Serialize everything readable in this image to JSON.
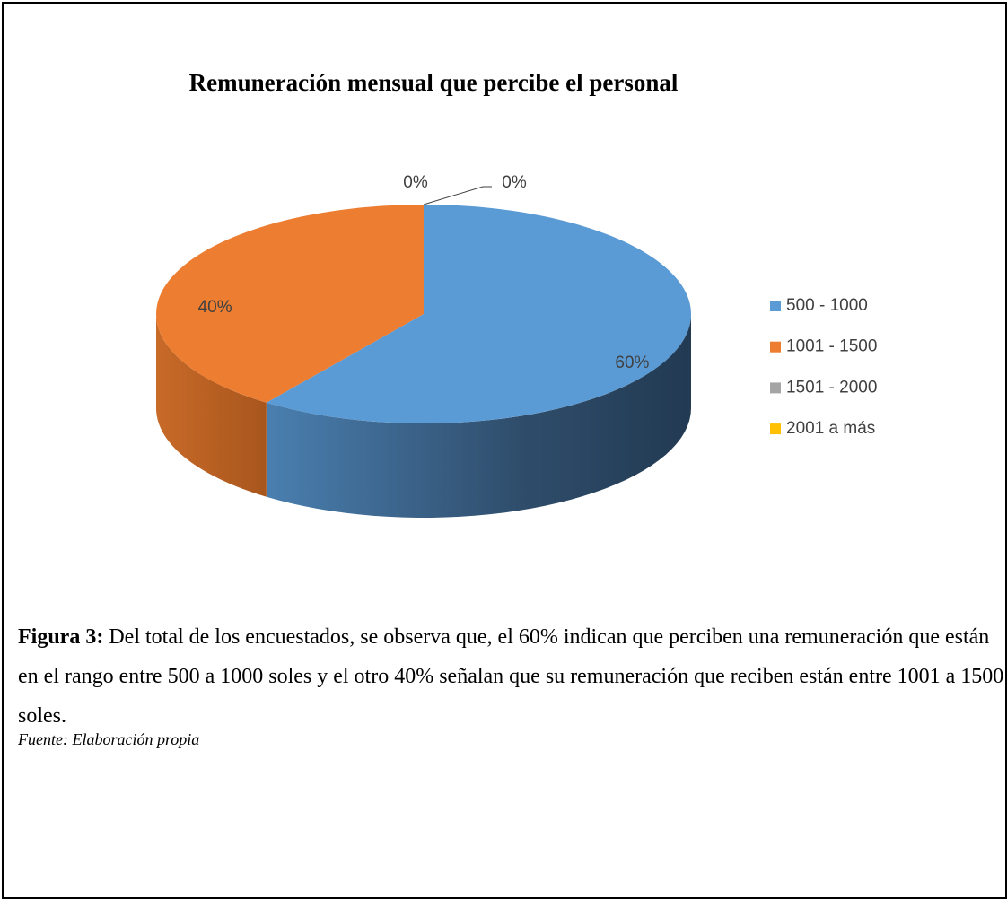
{
  "chart_data": {
    "type": "pie3d",
    "title": "Remuneración mensual que percibe el personal",
    "categories": [
      "500 - 1000",
      "1001 - 1500",
      "1501 - 2000",
      "2001 a más"
    ],
    "values": [
      60,
      40,
      0,
      0
    ],
    "value_labels": [
      "60%",
      "40%",
      "0%",
      "0%"
    ],
    "colors": [
      "#5b9bd5",
      "#ed7d31",
      "#a5a5a5",
      "#ffc000"
    ],
    "legend": "right"
  },
  "caption": {
    "label": "Figura 3:",
    "text": "Del total de los encuestados, se observa que, el 60% indican que perciben una remuneración que están en el rango entre 500 a 1000 soles y el otro 40% señalan que su remuneración que reciben están entre 1001 a 1500 soles."
  },
  "source": "Fuente: Elaboración propia"
}
